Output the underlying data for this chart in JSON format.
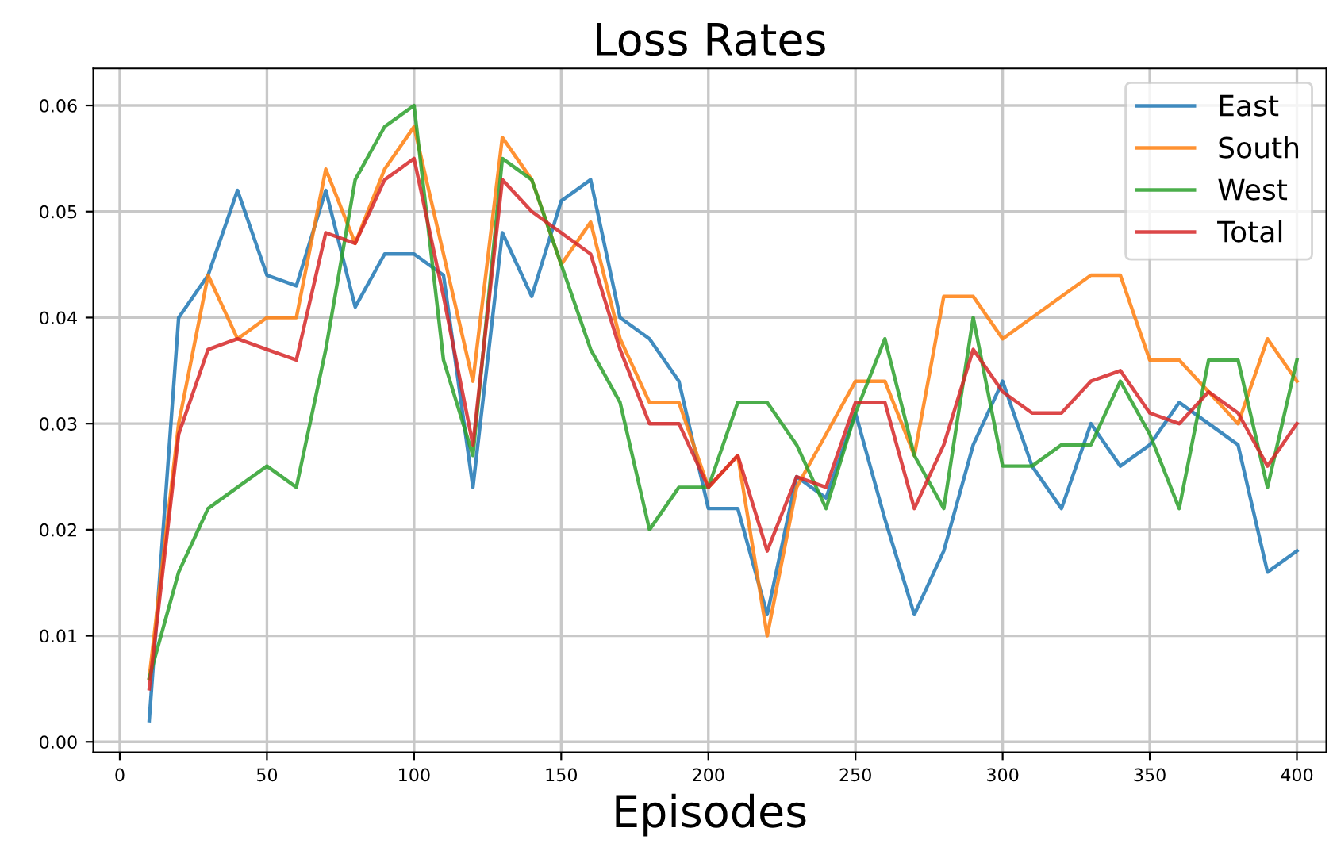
{
  "chart_data": {
    "type": "line",
    "title": "Loss Rates",
    "xlabel": "Episodes",
    "x": [
      10,
      20,
      30,
      40,
      50,
      60,
      70,
      80,
      90,
      100,
      110,
      120,
      130,
      140,
      150,
      160,
      170,
      180,
      190,
      200,
      210,
      220,
      230,
      240,
      250,
      260,
      270,
      280,
      290,
      300,
      310,
      320,
      330,
      340,
      350,
      360,
      370,
      380,
      390,
      400
    ],
    "series": [
      {
        "name": "East",
        "color": "#1f77b4",
        "values": [
          0.002,
          0.04,
          0.044,
          0.052,
          0.044,
          0.043,
          0.052,
          0.041,
          0.046,
          0.046,
          0.044,
          0.024,
          0.048,
          0.042,
          0.051,
          0.053,
          0.04,
          0.038,
          0.034,
          0.022,
          0.022,
          0.012,
          0.025,
          0.023,
          0.031,
          0.021,
          0.012,
          0.018,
          0.028,
          0.034,
          0.026,
          0.022,
          0.03,
          0.026,
          0.028,
          0.032,
          0.03,
          0.028,
          0.016,
          0.018
        ]
      },
      {
        "name": "South",
        "color": "#ff7f0e",
        "values": [
          0.006,
          0.03,
          0.044,
          0.038,
          0.04,
          0.04,
          0.054,
          0.047,
          0.054,
          0.058,
          0.046,
          0.034,
          0.057,
          0.053,
          0.045,
          0.049,
          0.038,
          0.032,
          0.032,
          0.024,
          0.027,
          0.01,
          0.024,
          0.029,
          0.034,
          0.034,
          0.027,
          0.042,
          0.042,
          0.038,
          0.04,
          0.042,
          0.044,
          0.044,
          0.036,
          0.036,
          0.033,
          0.03,
          0.038,
          0.034
        ]
      },
      {
        "name": "West",
        "color": "#2ca02c",
        "values": [
          0.006,
          0.016,
          0.022,
          0.024,
          0.026,
          0.024,
          0.037,
          0.053,
          0.058,
          0.06,
          0.036,
          0.027,
          0.055,
          0.053,
          0.045,
          0.037,
          0.032,
          0.02,
          0.024,
          0.024,
          0.032,
          0.032,
          0.028,
          0.022,
          0.031,
          0.038,
          0.027,
          0.022,
          0.04,
          0.026,
          0.026,
          0.028,
          0.028,
          0.034,
          0.029,
          0.022,
          0.036,
          0.036,
          0.024,
          0.036
        ]
      },
      {
        "name": "Total",
        "color": "#d62728",
        "values": [
          0.005,
          0.029,
          0.037,
          0.038,
          0.037,
          0.036,
          0.048,
          0.047,
          0.053,
          0.055,
          0.042,
          0.028,
          0.053,
          0.05,
          0.048,
          0.046,
          0.037,
          0.03,
          0.03,
          0.024,
          0.027,
          0.018,
          0.025,
          0.024,
          0.032,
          0.032,
          0.022,
          0.028,
          0.037,
          0.033,
          0.031,
          0.031,
          0.034,
          0.035,
          0.031,
          0.03,
          0.033,
          0.031,
          0.026,
          0.03
        ]
      }
    ],
    "xlim": [
      -9,
      410
    ],
    "xticks": [
      0,
      50,
      100,
      150,
      200,
      250,
      300,
      350,
      400
    ],
    "ylim": [
      -0.001,
      0.0635
    ],
    "yticks": [
      {
        "value": 0,
        "label": "0.00"
      },
      {
        "value": 0.01,
        "label": "0.01"
      },
      {
        "value": 0.02,
        "label": "0.02"
      },
      {
        "value": 0.03,
        "label": "0.03"
      },
      {
        "value": 0.04,
        "label": "0.04"
      },
      {
        "value": 0.05,
        "label": "0.05"
      },
      {
        "value": 0.06,
        "label": "0.06"
      }
    ],
    "grid": true,
    "legend": "top right"
  }
}
